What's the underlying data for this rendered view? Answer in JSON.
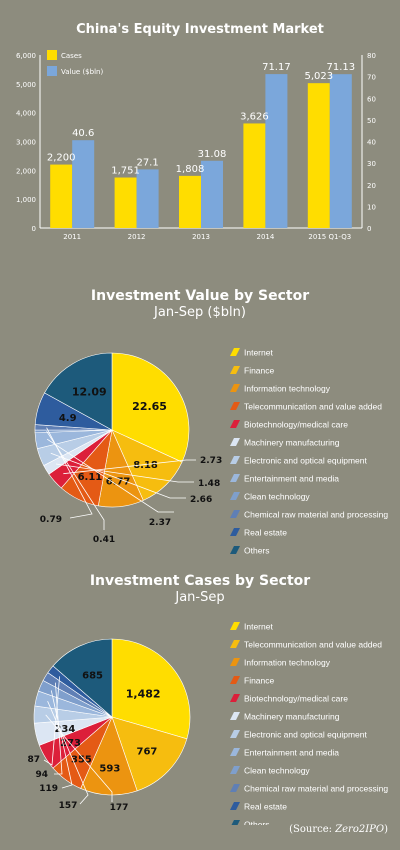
{
  "colors": {
    "background": "#8d8c7e",
    "cases": "#ffdd00",
    "value": "#7ba7db",
    "text": "#ffffff"
  },
  "source": {
    "prefix": "(Source: ",
    "name": "Zero2IPO",
    "suffix": ")"
  },
  "chart_data": [
    {
      "type": "bar",
      "title": "China's Equity Investment Market",
      "categories": [
        "2011",
        "2012",
        "2013",
        "2014",
        "2015 Q1-Q3"
      ],
      "series": [
        {
          "name": "Cases",
          "axis": "left",
          "values": [
            2200,
            1751,
            1808,
            3626,
            5023
          ],
          "labels": [
            "2,200",
            "1,751",
            "1,808",
            "3,626",
            "5,023"
          ],
          "color": "#ffdd00"
        },
        {
          "name": "Value ($bln)",
          "axis": "right",
          "values": [
            40.6,
            27.1,
            31.08,
            71.17,
            71.13
          ],
          "labels": [
            "40.6",
            "27.1",
            "31.08",
            "71.17",
            "71.13"
          ],
          "color": "#7ba7db"
        }
      ],
      "ylim_left": [
        0,
        6000
      ],
      "ylim_right": [
        0,
        80
      ],
      "yticks_left": [
        "0",
        "1,000",
        "2,000",
        "3,000",
        "4,000",
        "5,000",
        "6,000"
      ],
      "yticks_right": [
        "0",
        "10",
        "20",
        "30",
        "40",
        "50",
        "60",
        "70",
        "80"
      ],
      "legend": "top-left",
      "grid": false
    },
    {
      "type": "pie",
      "title": "Investment Value by Sector",
      "subtitle": "Jan-Sep ($bln)",
      "legend": "right",
      "slices": [
        {
          "label": "Internet",
          "value": 22.65,
          "display": "22.65",
          "color": "#ffdd00"
        },
        {
          "label": "Finance",
          "value": 8.18,
          "display": "8.18",
          "color": "#f6bd0f"
        },
        {
          "label": "Information technology",
          "value": 6.77,
          "display": "6.77",
          "color": "#ec9410"
        },
        {
          "label": "Telecommunication and value added",
          "value": 6.11,
          "display": "6.11",
          "color": "#e45a15"
        },
        {
          "label": "Biotechnology/medical care",
          "value": 2.73,
          "display": "2.73",
          "color": "#dc1f3a"
        },
        {
          "label": "Machinery manufacturing",
          "value": 1.48,
          "display": "1.48",
          "color": "#dce6f3"
        },
        {
          "label": "Electronic and optical equipment",
          "value": 2.66,
          "display": "2.66",
          "color": "#b8cde6"
        },
        {
          "label": "Entertainment and media",
          "value": 2.37,
          "display": "2.37",
          "color": "#9bb7dc"
        },
        {
          "label": "Clean technology",
          "value": 0.41,
          "display": "0.41",
          "color": "#7f9fcc"
        },
        {
          "label": "Chemical raw material and processing",
          "value": 0.79,
          "display": "0.79",
          "color": "#5f7fb5"
        },
        {
          "label": "Real estate",
          "value": 4.9,
          "display": "4.9",
          "color": "#2e5c9e"
        },
        {
          "label": "Others",
          "value": 12.09,
          "display": "12.09",
          "color": "#1d5a7b"
        }
      ]
    },
    {
      "type": "pie",
      "title": "Investment Cases by Sector",
      "subtitle": "Jan-Sep",
      "legend": "right",
      "slices": [
        {
          "label": "Internet",
          "value": 1482,
          "display": "1,482",
          "color": "#ffdd00"
        },
        {
          "label": "Telecommunication and value added",
          "value": 767,
          "display": "767",
          "color": "#f6bd0f"
        },
        {
          "label": "Information technology",
          "value": 593,
          "display": "593",
          "color": "#ec9410"
        },
        {
          "label": "Finance",
          "value": 355,
          "display": "355",
          "color": "#e45a15"
        },
        {
          "label": "Biotechnology/medical care",
          "value": 273,
          "display": "273",
          "color": "#dc1f3a"
        },
        {
          "label": "Machinery manufacturing",
          "value": 234,
          "display": "234",
          "color": "#dce6f3"
        },
        {
          "label": "Electronic and optical equipment",
          "value": 177,
          "display": "177",
          "color": "#b8cde6"
        },
        {
          "label": "Entertainment and media",
          "value": 157,
          "display": "157",
          "color": "#9bb7dc"
        },
        {
          "label": "Clean technology",
          "value": 119,
          "display": "119",
          "color": "#7f9fcc"
        },
        {
          "label": "Chemical raw material and processing",
          "value": 94,
          "display": "94",
          "color": "#5f7fb5"
        },
        {
          "label": "Real estate",
          "value": 87,
          "display": "87",
          "color": "#2e5c9e"
        },
        {
          "label": "Others",
          "value": 685,
          "display": "685",
          "color": "#1d5a7b"
        }
      ]
    }
  ]
}
